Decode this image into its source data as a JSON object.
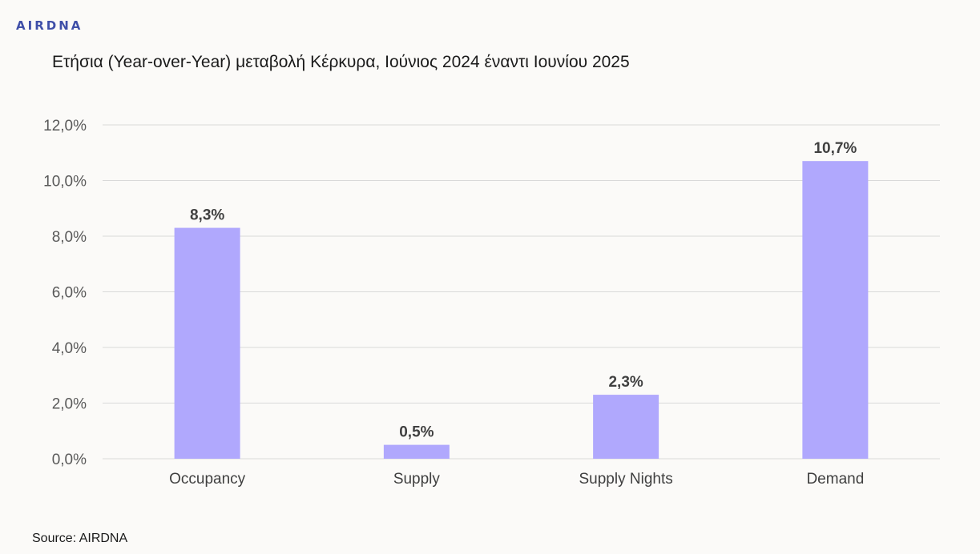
{
  "logo": "AIRDNA",
  "title": "Ετήσια (Year-over-Year) μεταβολή Κέρκυρα, Ιούνιος 2024 έναντι Ιουνίου 2025",
  "source": "Source: AIRDNA",
  "chart_data": {
    "type": "bar",
    "categories": [
      "Occupancy",
      "Supply",
      "Supply Nights",
      "Demand"
    ],
    "values": [
      8.3,
      0.5,
      2.3,
      10.7
    ],
    "data_labels": [
      "8,3%",
      "0,5%",
      "2,3%",
      "10,7%"
    ],
    "title": "Ετήσια (Year-over-Year) μεταβολή Κέρκυρα, Ιούνιος 2024 έναντι Ιουνίου 2025",
    "xlabel": "",
    "ylabel": "",
    "ylim": [
      0,
      12
    ],
    "yticks": [
      0,
      2,
      4,
      6,
      8,
      10,
      12
    ],
    "ytick_labels": [
      "0,0%",
      "2,0%",
      "4,0%",
      "6,0%",
      "8,0%",
      "10,0%",
      "12,0%"
    ],
    "grid": true,
    "legend": "none",
    "bar_color": "#b0a8fd",
    "grid_color": "#d9d9d9"
  }
}
